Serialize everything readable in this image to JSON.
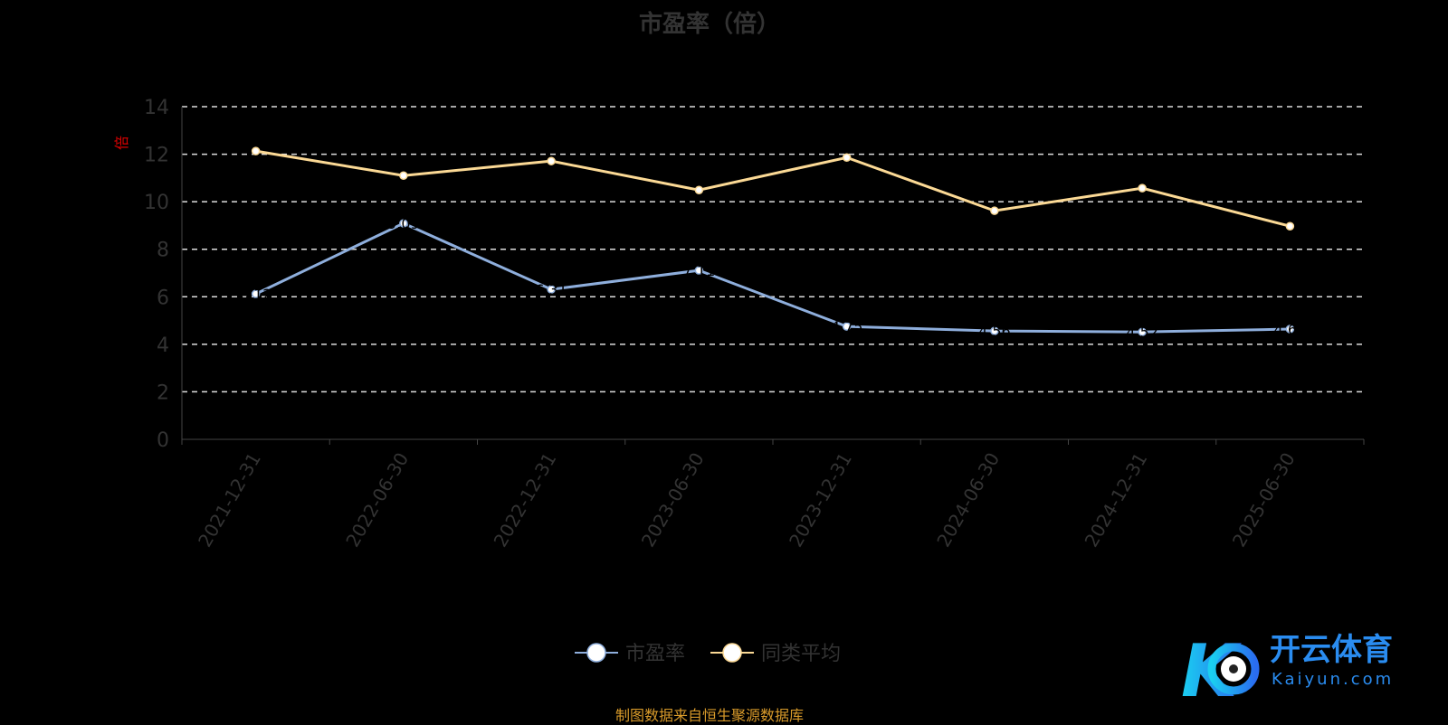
{
  "chart_data": {
    "type": "line",
    "title": "市盈率（倍）",
    "ylabel": "倍",
    "ylim": [
      0,
      14
    ],
    "yticks": [
      0,
      2,
      4,
      6,
      8,
      10,
      12,
      14
    ],
    "grid": true,
    "legend_placement": "bottom",
    "categories": [
      "2021-12-31",
      "2022-06-30",
      "2022-12-31",
      "2023-06-30",
      "2023-12-31",
      "2024-06-30",
      "2024-12-31",
      "2025-06-30"
    ],
    "series": [
      {
        "name": "市盈率",
        "color": "#8eaedc",
        "values": [
          6.12,
          9.09,
          6.31,
          7.11,
          4.75,
          4.56,
          4.52,
          4.64
        ]
      },
      {
        "name": "同类平均",
        "color": "#fbd995",
        "values": [
          12.13,
          11.1,
          11.71,
          10.49,
          11.86,
          9.62,
          10.57,
          8.97
        ]
      }
    ]
  },
  "source": "制图数据来自恒生聚源数据库",
  "watermark": {
    "name": "开云体育",
    "url_text": "Kaiyun.com"
  }
}
